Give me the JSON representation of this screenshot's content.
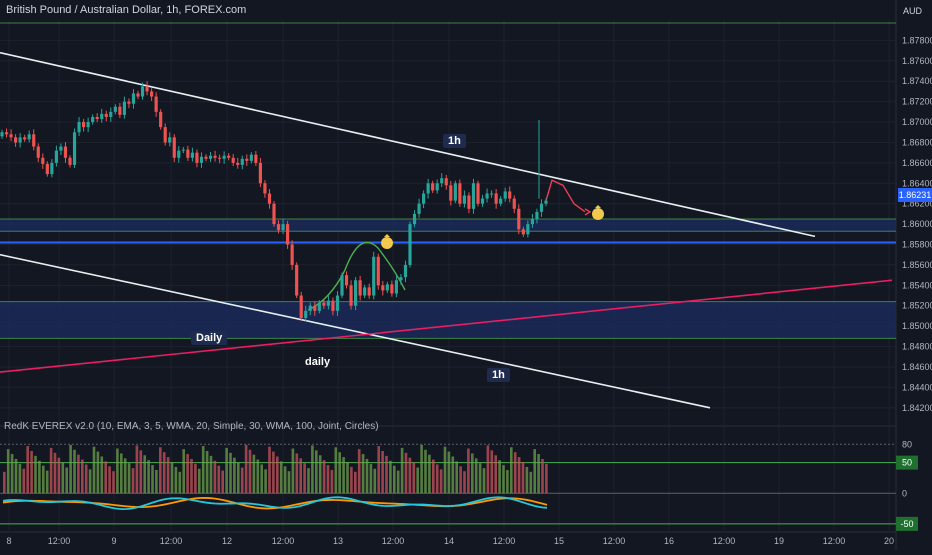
{
  "header": {
    "symbol_title": "British Pound / Australian Dollar, 1h, FOREX.com",
    "currency": "AUD",
    "indicator_title": "RedK EVEREX v2.0 (10, EMA, 3, 5, WMA, 20, Simple, 30, WMA, 100, Joint, Circles)"
  },
  "annotations": {
    "channel_1h_top": "1h",
    "channel_1h_bottom": "1h",
    "daily_box": "Daily",
    "daily_trend": "daily"
  },
  "chart_data": [
    {
      "type": "candlestick",
      "series_name": "GBPAUD",
      "ylim": [
        1.841,
        1.88
      ],
      "y_ticks": [
        "1.87800",
        "1.87600",
        "1.87400",
        "1.87200",
        "1.87000",
        "1.86800",
        "1.86600",
        "1.86400",
        "1.86200",
        "1.86000",
        "1.85800",
        "1.85600",
        "1.85400",
        "1.85200",
        "1.85000",
        "1.84800",
        "1.84600",
        "1.84400",
        "1.84200"
      ],
      "x_ticks": [
        "8",
        "12:00",
        "9",
        "12:00",
        "12",
        "12:00",
        "13",
        "12:00",
        "14",
        "12:00",
        "15",
        "12:00",
        "16",
        "12:00",
        "19",
        "12:00",
        "20"
      ],
      "last_price": "1.86231",
      "closes": [
        1.869,
        1.8688,
        1.8685,
        1.868,
        1.8685,
        1.8683,
        1.8688,
        1.8676,
        1.8665,
        1.8659,
        1.8649,
        1.866,
        1.8672,
        1.8676,
        1.8665,
        1.8658,
        1.869,
        1.87,
        1.8695,
        1.87,
        1.8705,
        1.8703,
        1.8708,
        1.8705,
        1.871,
        1.8715,
        1.8707,
        1.872,
        1.8718,
        1.8728,
        1.8725,
        1.8735,
        1.873,
        1.8725,
        1.871,
        1.8695,
        1.868,
        1.8685,
        1.8665,
        1.8672,
        1.8673,
        1.8665,
        1.867,
        1.866,
        1.8666,
        1.8664,
        1.8667,
        1.8665,
        1.8664,
        1.8667,
        1.8665,
        1.866,
        1.8658,
        1.8664,
        1.8662,
        1.8668,
        1.866,
        1.864,
        1.863,
        1.862,
        1.86,
        1.8594,
        1.86,
        1.858,
        1.856,
        1.853,
        1.8508,
        1.8515,
        1.852,
        1.8515,
        1.8523,
        1.852,
        1.8525,
        1.8515,
        1.853,
        1.855,
        1.854,
        1.852,
        1.8545,
        1.853,
        1.8538,
        1.853,
        1.8568,
        1.854,
        1.8535,
        1.8541,
        1.8532,
        1.8545,
        1.8548,
        1.856,
        1.86,
        1.861,
        1.862,
        1.863,
        1.864,
        1.8633,
        1.864,
        1.8645,
        1.8638,
        1.8623,
        1.864,
        1.862,
        1.8628,
        1.8615,
        1.864,
        1.862,
        1.8625,
        1.863,
        1.863,
        1.862,
        1.8625,
        1.8632,
        1.8625,
        1.8615,
        1.8595,
        1.859,
        1.86,
        1.8605,
        1.8612,
        1.862,
        1.8623
      ],
      "projection": [
        1.8643,
        1.8638,
        1.862,
        1.8612
      ],
      "price_box_top": [
        1.8605,
        1.8593
      ],
      "daily_box": [
        1.8524,
        1.8488
      ],
      "horizontal_line": 1.8582,
      "top_border": 1.8797,
      "channel_upper_line": [
        [
          0,
          1.8768
        ],
        [
          815,
          1.8588
        ]
      ],
      "channel_lower_line": [
        [
          0,
          1.857
        ],
        [
          710,
          1.842
        ]
      ],
      "daily_trend_line": [
        [
          0,
          1.8455
        ],
        [
          892,
          1.8545
        ]
      ]
    },
    {
      "type": "histogram_oscillator",
      "name": "RedK EVEREX v2.0",
      "ylim": [
        -60,
        100
      ],
      "y_ticks": [
        "80",
        "50",
        "0",
        "-50"
      ],
      "levels": {
        "upper": 50,
        "lower": -50,
        "zero": 0
      },
      "level_labels": [
        "50",
        "-50"
      ]
    }
  ]
}
